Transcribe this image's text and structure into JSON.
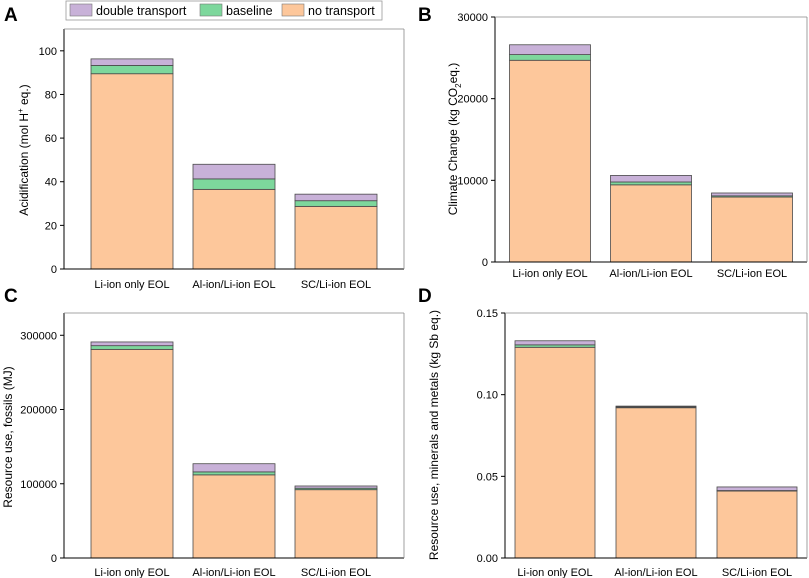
{
  "legend": {
    "items": [
      {
        "label": "double transport",
        "color": "#c8b1d8"
      },
      {
        "label": "baseline",
        "color": "#7dd79c"
      },
      {
        "label": "no transport",
        "color": "#fdc79b"
      }
    ]
  },
  "colors": {
    "no_transport": "#fdc79b",
    "baseline": "#7dd79c",
    "double_transport": "#c8b1d8",
    "bar_edge": "#4a4a4a",
    "axis": "#000000"
  },
  "chart_data": [
    {
      "panel": "A",
      "type": "bar",
      "stacked": true,
      "categories": [
        "Li-ion only EOL",
        "Al-ion/Li-ion EOL",
        "SC/Li-ion EOL"
      ],
      "series": [
        {
          "name": "no transport",
          "values": [
            89.5,
            36.5,
            28.7
          ]
        },
        {
          "name": "baseline",
          "values": [
            3.8,
            4.8,
            2.6
          ]
        },
        {
          "name": "double transport",
          "values": [
            3.0,
            6.7,
            3.0
          ]
        }
      ],
      "yticks": [
        "0",
        "20",
        "40",
        "60",
        "80",
        "100"
      ],
      "ytick_values": [
        0,
        20,
        40,
        60,
        80,
        100
      ],
      "ylim": [
        0,
        110
      ],
      "ylabel_main": "Acidification (mol H",
      "ylabel_sup": "+",
      "ylabel_tail": " eq.)",
      "grid": false
    },
    {
      "panel": "B",
      "type": "bar",
      "stacked": true,
      "categories": [
        "Li-ion only EOL",
        "Al-ion/Li-ion EOL",
        "SC/Li-ion EOL"
      ],
      "series": [
        {
          "name": "no transport",
          "values": [
            24700,
            9450,
            7950
          ]
        },
        {
          "name": "baseline",
          "values": [
            700,
            350,
            150
          ]
        },
        {
          "name": "double transport",
          "values": [
            1200,
            800,
            350
          ]
        }
      ],
      "yticks": [
        "0",
        "10000",
        "20000",
        "30000"
      ],
      "ytick_values": [
        0,
        10000,
        20000,
        30000
      ],
      "ylim": [
        0,
        30000
      ],
      "ylabel_main": "Climate Change (kg CO",
      "ylabel_sub": "2",
      "ylabel_tail": "eq.)",
      "grid": false
    },
    {
      "panel": "C",
      "type": "bar",
      "stacked": true,
      "categories": [
        "Li-ion only EOL",
        "Al-ion/Li-ion EOL",
        "SC/Li-ion EOL"
      ],
      "series": [
        {
          "name": "no transport",
          "values": [
            281000,
            112000,
            92000
          ]
        },
        {
          "name": "baseline",
          "values": [
            5000,
            4000,
            2000
          ]
        },
        {
          "name": "double transport",
          "values": [
            5000,
            11000,
            3000
          ]
        }
      ],
      "yticks": [
        "0",
        "100000",
        "200000",
        "300000"
      ],
      "ytick_values": [
        0,
        100000,
        200000,
        300000
      ],
      "ylim": [
        0,
        330000
      ],
      "ylabel_main": "Resource use, fossils (MJ)",
      "grid": false
    },
    {
      "panel": "D",
      "type": "bar",
      "stacked": true,
      "categories": [
        "Li-ion only EOL",
        "Al-ion/Li-ion EOL",
        "SC/Li-ion EOL"
      ],
      "series": [
        {
          "name": "no transport",
          "values": [
            0.129,
            0.092,
            0.041
          ]
        },
        {
          "name": "baseline",
          "values": [
            0.0015,
            0.0005,
            0.0003
          ]
        },
        {
          "name": "double transport",
          "values": [
            0.0025,
            0.0005,
            0.0022
          ]
        }
      ],
      "yticks": [
        "0.00",
        "0.05",
        "0.10",
        "0.15"
      ],
      "ytick_values": [
        0,
        0.05,
        0.1,
        0.15
      ],
      "ylim": [
        0,
        0.15
      ],
      "ylabel_main": "Resource use, minerals and metals (kg Sb eq.)",
      "grid": false
    }
  ]
}
